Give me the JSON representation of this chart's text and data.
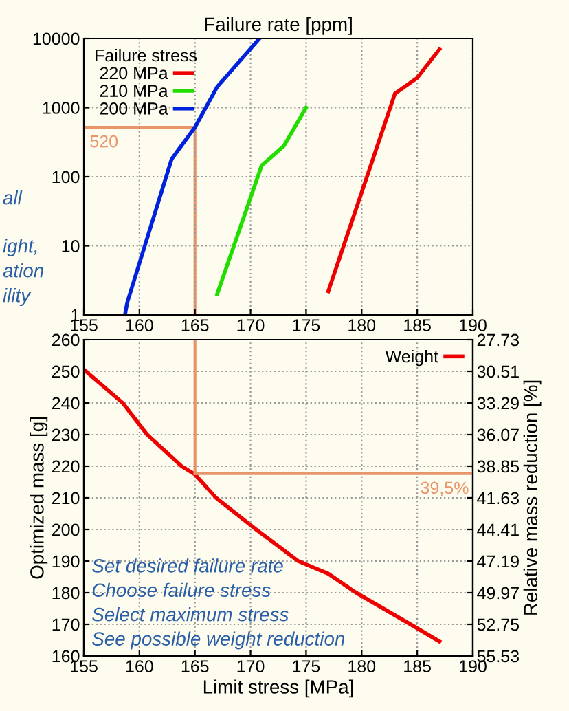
{
  "chart_data": [
    {
      "type": "line",
      "title": "Failure rate [ppm]",
      "legend_title": "Failure stress",
      "legend": "top left",
      "grid": true,
      "log": "y",
      "xlim": [
        155,
        190
      ],
      "xticks": [
        155,
        160,
        165,
        170,
        175,
        180,
        185,
        190
      ],
      "ylim": [
        1,
        10000
      ],
      "yticks": [
        1,
        10,
        100,
        1000,
        10000
      ],
      "series": [
        {
          "name": "220 MPa",
          "color": "#ee0000",
          "x": [
            177,
            183,
            185,
            187
          ],
          "values": [
            2.2,
            1600,
            2700,
            7000
          ]
        },
        {
          "name": "210 MPa",
          "color": "#22dd00",
          "x": [
            167,
            171,
            173,
            175
          ],
          "values": [
            2,
            145,
            280,
            1000
          ]
        },
        {
          "name": "200 MPa",
          "color": "#0022dd",
          "x": [
            158.7,
            158.9,
            162.9,
            165,
            167,
            170.8
          ],
          "values": [
            1,
            1.5,
            180,
            520,
            2000,
            10000
          ]
        }
      ],
      "ref_lines": [
        {
          "axis": "x",
          "value": 165,
          "color": "#e8956a"
        },
        {
          "axis": "y",
          "value": 520,
          "label": "520",
          "color": "#e8956a"
        }
      ],
      "annotations": [
        "all",
        "ight,",
        "ation",
        "ility"
      ]
    },
    {
      "type": "line",
      "xlabel": "Limit stress [MPa]",
      "ylabel": "Optimized mass [g]",
      "y2label": "Relative mass reduction [%]",
      "legend": "top right",
      "grid": true,
      "xlim": [
        155,
        190
      ],
      "xticks": [
        155,
        160,
        165,
        170,
        175,
        180,
        185,
        190
      ],
      "ylim": [
        160,
        260
      ],
      "yticks": [
        160,
        170,
        180,
        190,
        200,
        210,
        220,
        230,
        240,
        250,
        260
      ],
      "y2lim": [
        55.53,
        27.73
      ],
      "y2ticks": [
        55.53,
        52.75,
        49.97,
        47.19,
        44.41,
        41.63,
        38.85,
        36.07,
        33.29,
        30.51,
        27.73
      ],
      "series": [
        {
          "name": "Weight",
          "color": "#ee0000",
          "x": [
            155,
            158.5,
            160.7,
            163.8,
            165,
            166.9,
            170.5,
            174.3,
            177,
            179.5,
            184.4,
            187
          ],
          "values": [
            250.6,
            240,
            230,
            220,
            217.4,
            210,
            200,
            190,
            186,
            180,
            170,
            164.6
          ]
        }
      ],
      "ref_lines": [
        {
          "axis": "x",
          "value": 165,
          "color": "#e8956a"
        },
        {
          "axis": "y2",
          "value": 39.5,
          "label": "39,5%",
          "color": "#e8956a"
        }
      ],
      "annotations": [
        "Set desired failure rate",
        "Choose failure stress",
        "Select maximum stress",
        "See possible weight reduction"
      ]
    }
  ]
}
